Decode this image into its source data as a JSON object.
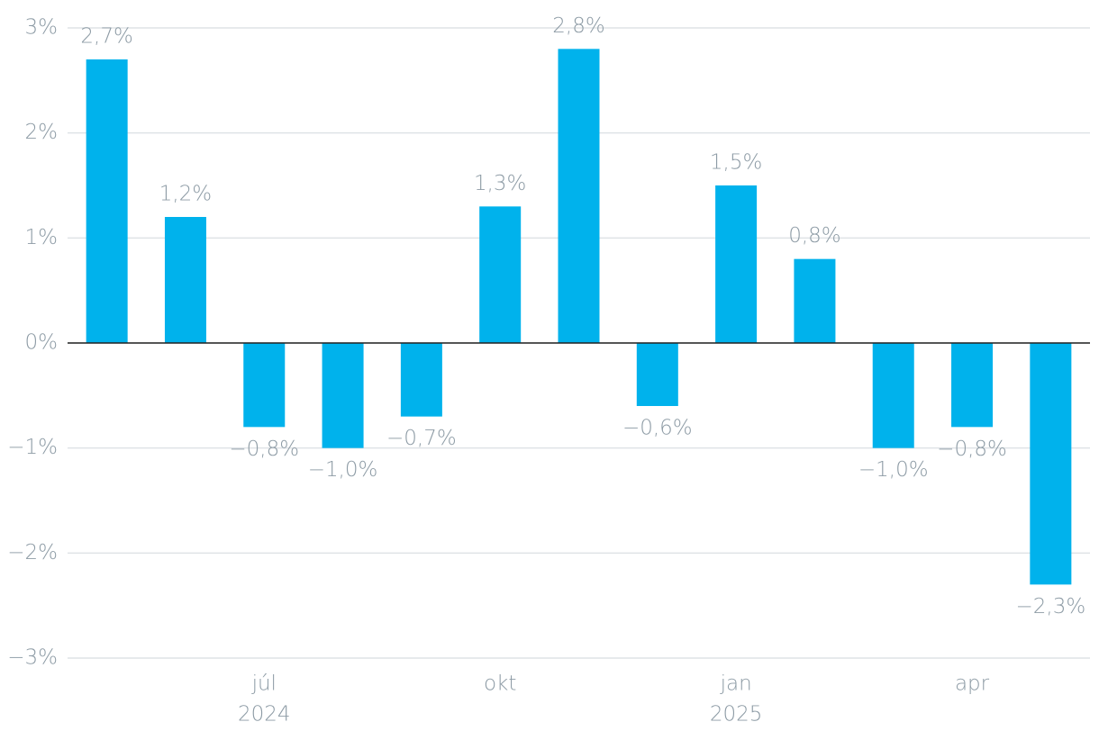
{
  "chart_data": {
    "type": "bar",
    "categories": [
      null,
      null,
      "júl",
      null,
      null,
      "okt",
      null,
      null,
      "jan",
      null,
      null,
      "apr",
      null
    ],
    "category_groups": [
      null,
      null,
      "2024",
      null,
      null,
      null,
      null,
      null,
      "2025",
      null,
      null,
      null,
      null
    ],
    "values": [
      2.7,
      1.2,
      -0.8,
      -1.0,
      -0.7,
      1.3,
      2.8,
      -0.6,
      1.5,
      0.8,
      -1.0,
      -0.8,
      -2.3
    ],
    "value_labels": [
      "2,7%",
      "1,2%",
      "−0,8%",
      "−1,0%",
      "−0,7%",
      "1,3%",
      "2,8%",
      "−0,6%",
      "1,5%",
      "0,8%",
      "−1,0%",
      "−0,8%",
      "−2,3%"
    ],
    "color": "#00b2ec",
    "ylim": [
      -3,
      3
    ],
    "yticks": [
      {
        "value": -3,
        "label": "−3%"
      },
      {
        "value": -2,
        "label": "−2%"
      },
      {
        "value": -1,
        "label": "−1%"
      },
      {
        "value": 0,
        "label": "0%"
      },
      {
        "value": 1,
        "label": "1%"
      },
      {
        "value": 2,
        "label": "2%"
      },
      {
        "value": 3,
        "label": "3%"
      }
    ],
    "grid": true
  }
}
